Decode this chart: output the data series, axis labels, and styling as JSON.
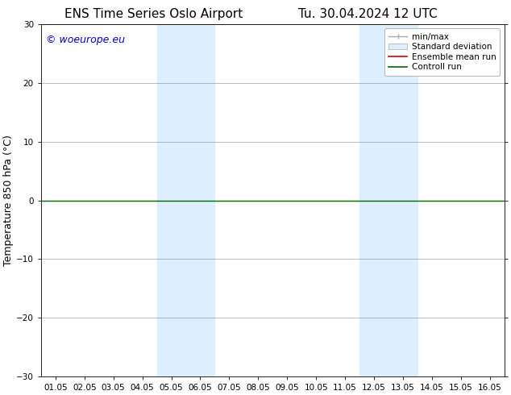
{
  "title_left": "ENS Time Series Oslo Airport",
  "title_right": "Tu. 30.04.2024 12 UTC",
  "ylabel": "Temperature 850 hPa (°C)",
  "watermark": "© woeurope.eu",
  "watermark_color": "#0000cc",
  "xlim_start": -0.5,
  "xlim_end": 15.5,
  "ylim_min": -30,
  "ylim_max": 30,
  "yticks": [
    -30,
    -20,
    -10,
    0,
    10,
    20,
    30
  ],
  "xtick_labels": [
    "01.05",
    "02.05",
    "03.05",
    "04.05",
    "05.05",
    "06.05",
    "07.05",
    "08.05",
    "09.05",
    "10.05",
    "11.05",
    "12.05",
    "13.05",
    "14.05",
    "15.05",
    "16.05"
  ],
  "xtick_positions": [
    0,
    1,
    2,
    3,
    4,
    5,
    6,
    7,
    8,
    9,
    10,
    11,
    12,
    13,
    14,
    15
  ],
  "shaded_regions": [
    {
      "x_start": 3.5,
      "x_end": 5.5,
      "color": "#ddeeff"
    },
    {
      "x_start": 10.5,
      "x_end": 12.5,
      "color": "#ddeeff"
    }
  ],
  "zero_line_color": "#006600",
  "background_color": "#ffffff",
  "plot_bg_color": "#ffffff",
  "grid_color": "#888888",
  "legend_entries": [
    {
      "label": "min/max",
      "color": "#aaaaaa",
      "type": "errorbar"
    },
    {
      "label": "Standard deviation",
      "color": "#ccddee",
      "type": "bar"
    },
    {
      "label": "Ensemble mean run",
      "color": "#dd0000",
      "type": "line"
    },
    {
      "label": "Controll run",
      "color": "#006600",
      "type": "line"
    }
  ],
  "title_fontsize": 11,
  "tick_fontsize": 7.5,
  "ylabel_fontsize": 9,
  "watermark_fontsize": 9,
  "legend_fontsize": 7.5
}
